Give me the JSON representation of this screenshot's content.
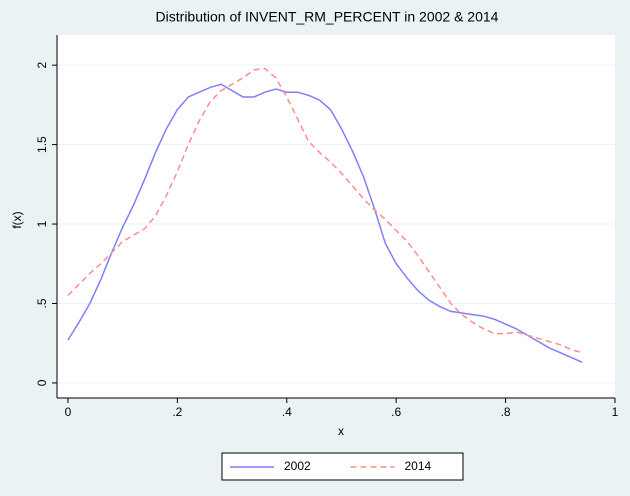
{
  "chart_data": {
    "type": "line",
    "title": "Distribution of INVENT_RM_PERCENT in 2002 & 2014",
    "x_label": "x",
    "y_label": "f(x)",
    "x": [
      0,
      0.02,
      0.04,
      0.06,
      0.08,
      0.1,
      0.12,
      0.14,
      0.16,
      0.18,
      0.2,
      0.22,
      0.24,
      0.26,
      0.28,
      0.3,
      0.32,
      0.34,
      0.36,
      0.38,
      0.4,
      0.42,
      0.44,
      0.46,
      0.48,
      0.5,
      0.52,
      0.54,
      0.56,
      0.58,
      0.6,
      0.62,
      0.64,
      0.66,
      0.68,
      0.7,
      0.72,
      0.74,
      0.76,
      0.78,
      0.8,
      0.82,
      0.84,
      0.86,
      0.88,
      0.9,
      0.92,
      0.94
    ],
    "series": [
      {
        "name": "2002",
        "color": "#7f7fff",
        "line_style": "solid",
        "values": [
          0.27,
          0.38,
          0.5,
          0.65,
          0.82,
          0.98,
          1.12,
          1.28,
          1.45,
          1.6,
          1.72,
          1.8,
          1.83,
          1.86,
          1.88,
          1.84,
          1.8,
          1.8,
          1.83,
          1.85,
          1.83,
          1.83,
          1.81,
          1.78,
          1.72,
          1.6,
          1.46,
          1.3,
          1.1,
          0.88,
          0.75,
          0.66,
          0.58,
          0.52,
          0.48,
          0.45,
          0.44,
          0.43,
          0.42,
          0.4,
          0.37,
          0.34,
          0.3,
          0.26,
          0.22,
          0.19,
          0.16,
          0.13
        ]
      },
      {
        "name": "2014",
        "color": "#ff8c8c",
        "line_style": "dashed",
        "values": [
          0.55,
          0.62,
          0.69,
          0.75,
          0.82,
          0.89,
          0.93,
          0.97,
          1.05,
          1.18,
          1.33,
          1.5,
          1.65,
          1.77,
          1.84,
          1.88,
          1.92,
          1.97,
          1.98,
          1.92,
          1.8,
          1.66,
          1.52,
          1.45,
          1.39,
          1.32,
          1.24,
          1.16,
          1.09,
          1.03,
          0.96,
          0.89,
          0.8,
          0.7,
          0.6,
          0.5,
          0.43,
          0.38,
          0.34,
          0.31,
          0.31,
          0.32,
          0.3,
          0.28,
          0.26,
          0.24,
          0.21,
          0.19
        ]
      }
    ],
    "xlim": [
      -0.02,
      1.0
    ],
    "ylim": [
      -0.095,
      2.19
    ],
    "xticks": [
      0,
      {
        "value": 0.2,
        "label": ".2"
      },
      {
        "value": 0.4,
        "label": ".4"
      },
      {
        "value": 0.6,
        "label": ".6"
      },
      {
        "value": 0.8,
        "label": ".8"
      },
      1
    ],
    "yticks": [
      0,
      {
        "value": 0.5,
        "label": ".5"
      },
      1,
      1.5,
      2
    ],
    "grid": true,
    "legend": "bottom"
  }
}
